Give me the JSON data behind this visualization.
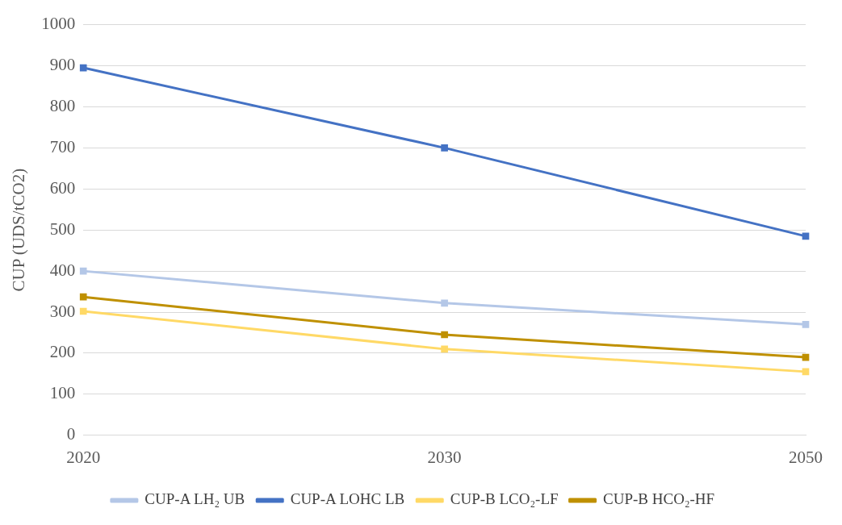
{
  "chart_data": {
    "type": "line",
    "ylabel": "CUP (UDS/tCO2)",
    "categories": [
      "2020",
      "2030",
      "2050"
    ],
    "series": [
      {
        "name": "CUP-A LH₂ UB",
        "color": "#b4c7e7",
        "values": [
          400,
          322,
          270
        ]
      },
      {
        "name": "CUP-A LOHC LB",
        "color": "#4472c4",
        "values": [
          895,
          700,
          485
        ]
      },
      {
        "name": "CUP-B LCO₂-LF",
        "color": "#ffd966",
        "values": [
          302,
          210,
          155
        ]
      },
      {
        "name": "CUP-B HCO₂-HF",
        "color": "#bf9000",
        "values": [
          337,
          245,
          190
        ]
      }
    ],
    "ylim": [
      0,
      1000
    ],
    "yticks": [
      0,
      100,
      200,
      300,
      400,
      500,
      600,
      700,
      800,
      900,
      1000
    ],
    "grid": "y",
    "legend": "bottom",
    "marker": "square"
  }
}
